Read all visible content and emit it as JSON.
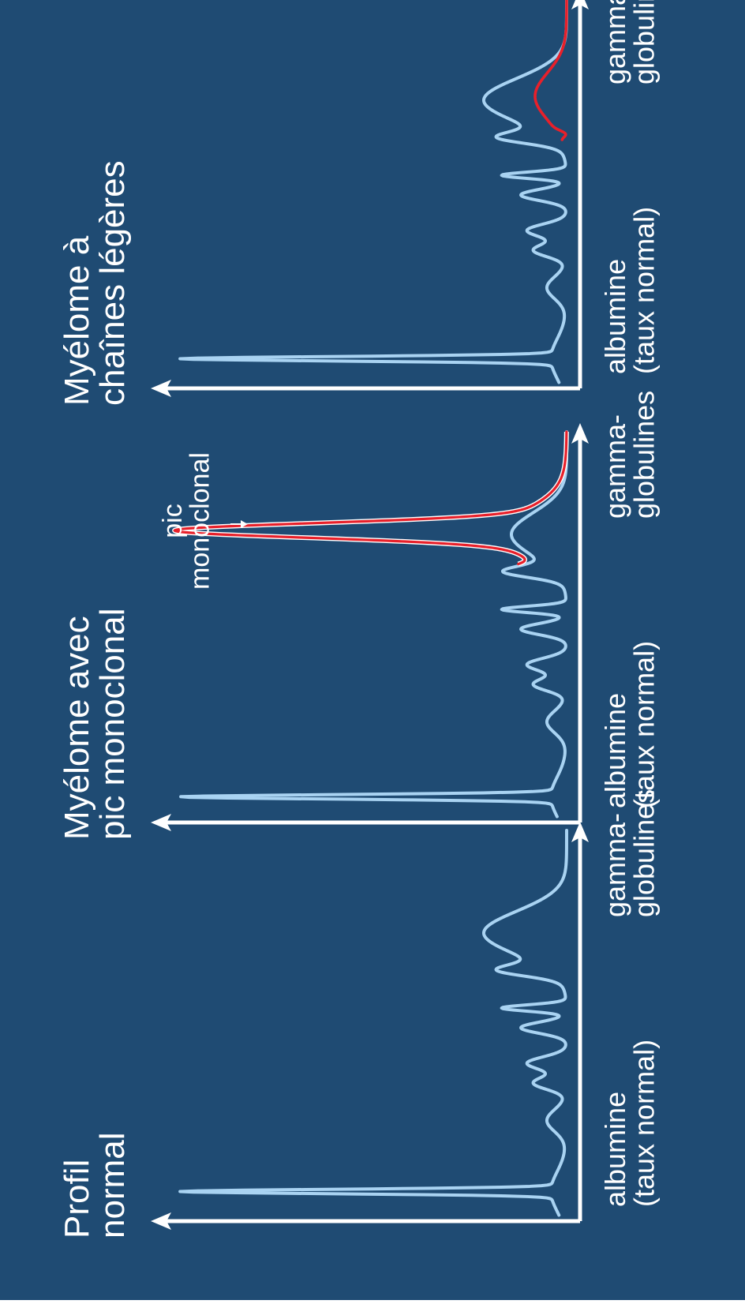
{
  "colors": {
    "background": "#1f4b73",
    "axis": "#ffffff",
    "normal_curve": "#a9d3f2",
    "abnormal_curve": "#e8202a",
    "text": "#ffffff"
  },
  "panels": [
    {
      "id": "normal",
      "title_lines": [
        "Profil",
        "normal"
      ],
      "left_label_lines": [
        "albumine",
        "(taux normal)"
      ],
      "right_label_lines": [
        "gamma-",
        "globulines"
      ],
      "curve": "normal",
      "annotation_lines": []
    },
    {
      "id": "monoclonal",
      "title_lines": [
        "Myélome avec",
        "pic monoclonal"
      ],
      "left_label_lines": [
        "albumine",
        "(taux normal)"
      ],
      "right_label_lines": [
        "gamma-",
        "globulines"
      ],
      "curve": "monoclonal",
      "annotation_lines": [
        "pic",
        "monoclonal"
      ]
    },
    {
      "id": "light-chain",
      "title_lines": [
        "Myélome à",
        "chaînes légères"
      ],
      "left_label_lines": [
        "albumine",
        "(taux normal)"
      ],
      "right_label_lines": [
        "gamma-",
        "globulines"
      ],
      "curve": "light-chain",
      "annotation_lines": []
    }
  ]
}
